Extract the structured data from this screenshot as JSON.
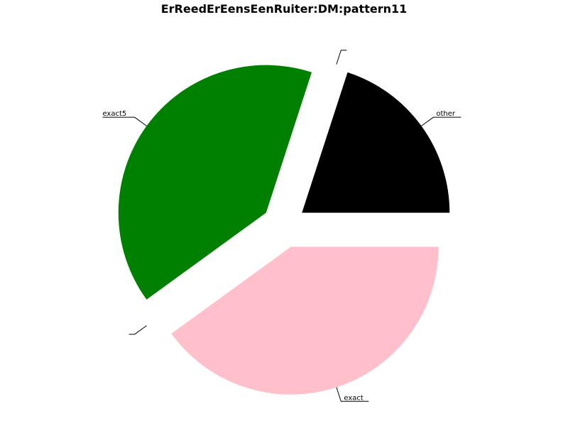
{
  "chart_data": {
    "type": "pie",
    "title": "ErReedErEensEenRuiter:DM:pattern11",
    "slices": [
      {
        "label": "other",
        "value": 20,
        "color": "#000000",
        "exploded": true
      },
      {
        "label": "",
        "value": 0,
        "color": "#000000",
        "exploded": true
      },
      {
        "label": "exact5",
        "value": 40,
        "color": "#008000",
        "exploded": true
      },
      {
        "label": "",
        "value": 0,
        "color": "#000000",
        "exploded": true
      },
      {
        "label": "exact",
        "value": 40,
        "color": "#ffc0cb",
        "exploded": true
      }
    ],
    "start_angle_deg": 0,
    "direction": "counterclockwise",
    "legend": "none"
  }
}
